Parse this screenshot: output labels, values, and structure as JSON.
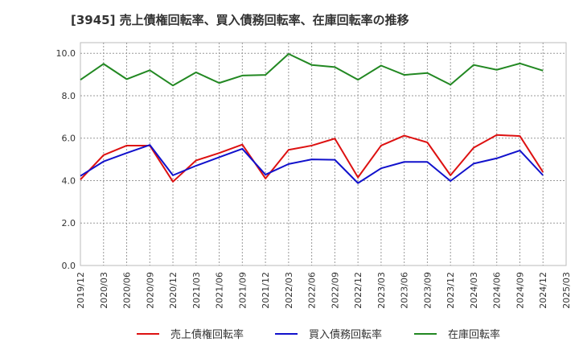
{
  "chart_data": {
    "type": "line",
    "title": "[3945]  売上債権回転率、買入債務回転率、在庫回転率の推移",
    "xlabel": "",
    "ylabel": "",
    "ylim": [
      0,
      10.5
    ],
    "yticks": [
      0,
      2,
      4,
      6,
      8,
      10
    ],
    "ytick_labels": [
      "0.0",
      "2.0",
      "4.0",
      "6.0",
      "8.0",
      "10.0"
    ],
    "x": [
      "2019/12",
      "2020/03",
      "2020/06",
      "2020/09",
      "2020/12",
      "2021/03",
      "2021/06",
      "2021/09",
      "2021/12",
      "2022/03",
      "2022/06",
      "2022/09",
      "2022/12",
      "2023/03",
      "2023/06",
      "2023/09",
      "2023/12",
      "2024/03",
      "2024/06",
      "2024/09",
      "2024/12",
      "2025/03"
    ],
    "grid": true,
    "legend_position": "bottom",
    "series": [
      {
        "name": "売上債権回転率",
        "color": "#dd1111",
        "values": [
          4.05,
          5.2,
          5.65,
          5.65,
          3.95,
          4.95,
          5.3,
          5.7,
          4.1,
          5.45,
          5.65,
          5.98,
          4.15,
          5.65,
          6.12,
          5.8,
          4.25,
          5.55,
          6.15,
          6.1,
          4.4,
          null
        ]
      },
      {
        "name": "買入債務回転率",
        "color": "#1111cc",
        "values": [
          4.22,
          4.9,
          5.3,
          5.68,
          4.25,
          4.7,
          5.1,
          5.5,
          4.28,
          4.78,
          5.0,
          4.98,
          3.88,
          4.58,
          4.88,
          4.88,
          3.98,
          4.8,
          5.05,
          5.42,
          4.25,
          null
        ]
      },
      {
        "name": "在庫回転率",
        "color": "#228822",
        "values": [
          8.75,
          9.5,
          8.78,
          9.2,
          8.48,
          9.1,
          8.6,
          8.95,
          8.98,
          9.97,
          9.45,
          9.35,
          8.75,
          9.42,
          8.98,
          9.07,
          8.52,
          9.45,
          9.22,
          9.52,
          9.18,
          null
        ]
      }
    ]
  }
}
